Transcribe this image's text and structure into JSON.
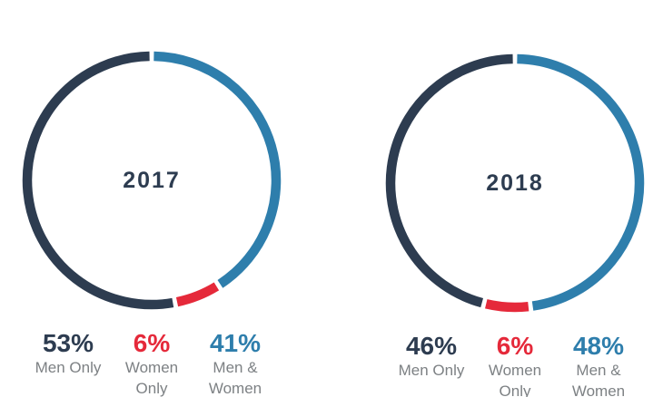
{
  "page": {
    "background": "#ffffff"
  },
  "colors": {
    "navy": "#2d3c50",
    "red": "#e5293a",
    "blue": "#2e7eac",
    "label_gray": "#7d8184"
  },
  "chart_data": [
    {
      "type": "pie",
      "variant": "donut",
      "title": "2017",
      "start_at": "top",
      "direction": "clockwise",
      "draw_order": "reversed",
      "segment_gap_deg": 2,
      "legend_position": "bottom",
      "segments": [
        {
          "name": "men-only",
          "label": "Men Only",
          "label_lines": [
            "Men Only"
          ],
          "value": 53,
          "value_label": "53%",
          "color": "#2d3c50"
        },
        {
          "name": "women-only",
          "label": "Women Only",
          "label_lines": [
            "Women",
            "Only"
          ],
          "value": 6,
          "value_label": "6%",
          "color": "#e5293a"
        },
        {
          "name": "men-women",
          "label": "Men & Women",
          "label_lines": [
            "Men &",
            "Women"
          ],
          "value": 41,
          "value_label": "41%",
          "color": "#2e7eac"
        }
      ]
    },
    {
      "type": "pie",
      "variant": "donut",
      "title": "2018",
      "start_at": "top",
      "direction": "clockwise",
      "draw_order": "reversed",
      "segment_gap_deg": 2,
      "legend_position": "bottom",
      "segments": [
        {
          "name": "men-only",
          "label": "Men Only",
          "label_lines": [
            "Men Only"
          ],
          "value": 46,
          "value_label": "46%",
          "color": "#2d3c50"
        },
        {
          "name": "women-only",
          "label": "Women Only",
          "label_lines": [
            "Women",
            "Only"
          ],
          "value": 6,
          "value_label": "6%",
          "color": "#e5293a"
        },
        {
          "name": "men-women",
          "label": "Men & Women",
          "label_lines": [
            "Men &",
            "Women"
          ],
          "value": 48,
          "value_label": "48%",
          "color": "#2e7eac"
        }
      ]
    }
  ]
}
